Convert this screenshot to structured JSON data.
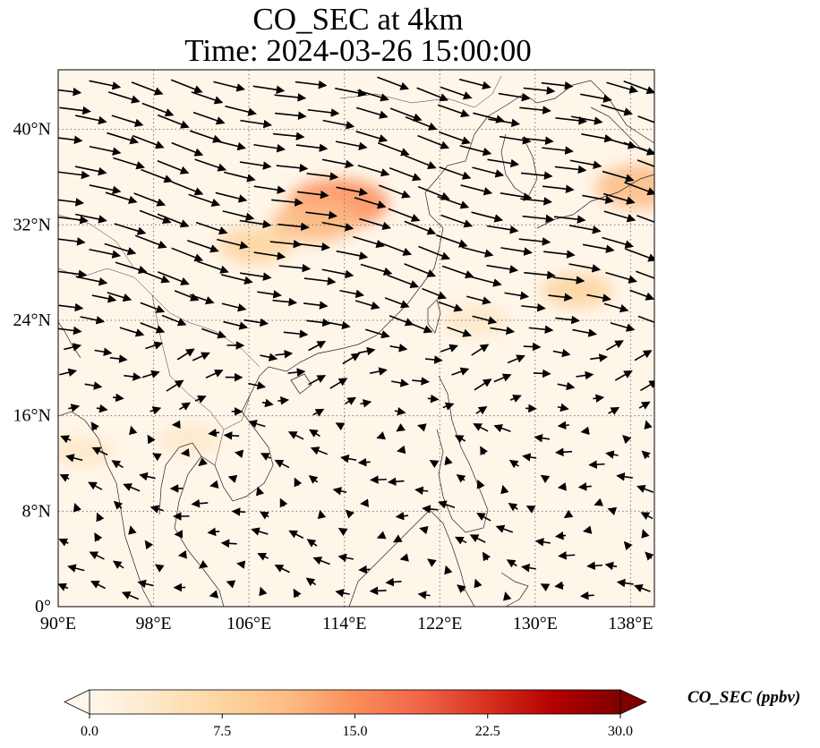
{
  "title": {
    "line1": "CO_SEC at 4km",
    "line2": "Time: 2024-03-26 15:00:00"
  },
  "map": {
    "lon_range": [
      90,
      140
    ],
    "lat_range": [
      0,
      45
    ],
    "lon_ticks": [
      "90°E",
      "98°E",
      "106°E",
      "114°E",
      "122°E",
      "130°E",
      "138°E"
    ],
    "lat_ticks": [
      "0°",
      "8°N",
      "16°N",
      "24°N",
      "32°N",
      "40°N"
    ],
    "gridlines": "dotted"
  },
  "colorbar": {
    "label": "CO_SEC (ppbv)",
    "range": [
      0,
      30
    ],
    "ticks": [
      "0.0",
      "7.5",
      "15.0",
      "22.5",
      "30.0"
    ],
    "colormap": "OrRd",
    "extend": "both",
    "colors": [
      "#fff7ec",
      "#fee8c8",
      "#fdd49e",
      "#fdbb84",
      "#fc8d59",
      "#ef6548",
      "#d7301f",
      "#b30000",
      "#7f0000"
    ]
  },
  "plumes": [
    {
      "lon": 113.5,
      "lat": 33.8,
      "value": 14
    },
    {
      "lon": 111.5,
      "lat": 32.3,
      "value": 10
    },
    {
      "lon": 106.5,
      "lat": 30.3,
      "value": 7
    },
    {
      "lon": 138.8,
      "lat": 35.2,
      "value": 11
    },
    {
      "lon": 133.5,
      "lat": 26.5,
      "value": 6
    },
    {
      "lon": 125,
      "lat": 24,
      "value": 5
    },
    {
      "lon": 92,
      "lat": 13,
      "value": 4
    },
    {
      "lon": 101,
      "lat": 14,
      "value": 3
    }
  ]
}
